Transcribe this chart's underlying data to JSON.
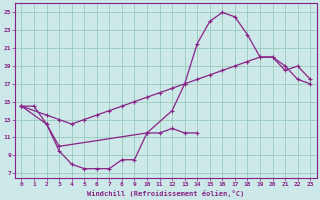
{
  "xlabel": "Windchill (Refroidissement éolien,°C)",
  "bg_color": "#cce8e8",
  "line_color": "#882288",
  "grid_color": "#99ccbb",
  "xlim": [
    -0.5,
    23.5
  ],
  "ylim": [
    6.5,
    26.0
  ],
  "xticks": [
    0,
    1,
    2,
    3,
    4,
    5,
    6,
    7,
    8,
    9,
    10,
    11,
    12,
    13,
    14,
    15,
    16,
    17,
    18,
    19,
    20,
    21,
    22,
    23
  ],
  "yticks": [
    7,
    9,
    11,
    13,
    15,
    17,
    19,
    21,
    23,
    25
  ],
  "series": [
    {
      "x": [
        0,
        1,
        2,
        3,
        4,
        5,
        6,
        7,
        8,
        9,
        10,
        11,
        12,
        13,
        14
      ],
      "y": [
        14.5,
        14.5,
        12.5,
        9.5,
        8.0,
        7.5,
        7.5,
        7.5,
        8.5,
        8.5,
        11.5,
        11.5,
        12.0,
        11.5,
        11.5
      ]
    },
    {
      "x": [
        0,
        2,
        3,
        4,
        5,
        6,
        7,
        8,
        9,
        10,
        11,
        12,
        13,
        14,
        15,
        16,
        17,
        18,
        19,
        20,
        21,
        22,
        23
      ],
      "y": [
        14.5,
        13.5,
        13.0,
        12.5,
        13.0,
        13.5,
        14.0,
        14.5,
        15.0,
        15.5,
        16.0,
        16.5,
        17.0,
        17.5,
        18.0,
        18.5,
        19.0,
        19.5,
        20.0,
        20.0,
        19.0,
        17.5,
        17.0
      ]
    },
    {
      "x": [
        0,
        2,
        3,
        10,
        12,
        13,
        14,
        15,
        16,
        17,
        18,
        19,
        20,
        21,
        22,
        23
      ],
      "y": [
        14.5,
        12.5,
        10.0,
        11.5,
        14.0,
        17.0,
        21.5,
        24.0,
        25.0,
        24.5,
        22.5,
        20.0,
        20.0,
        18.5,
        19.0,
        17.5
      ]
    }
  ]
}
